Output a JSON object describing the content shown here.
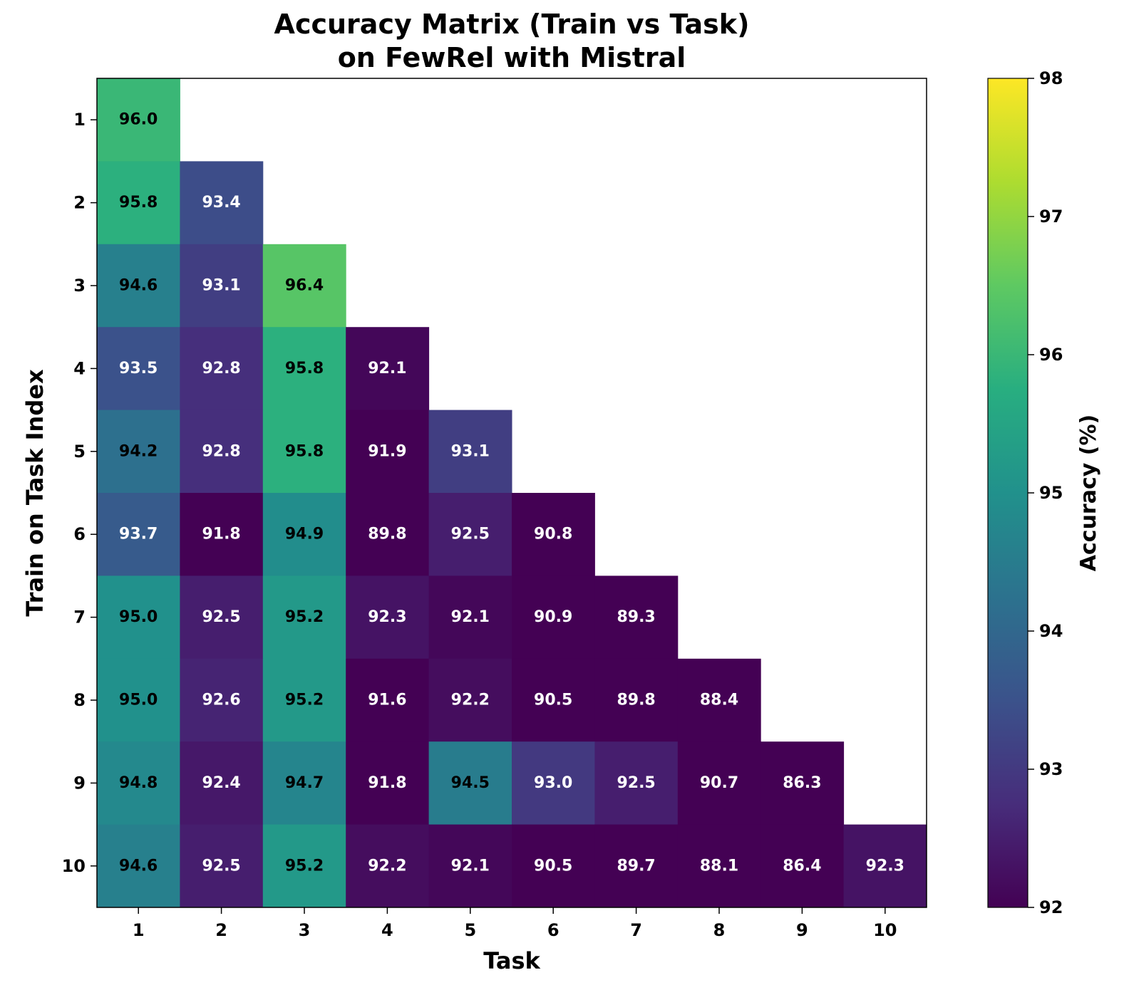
{
  "chart_data": {
    "type": "heatmap",
    "title_lines": [
      "Accuracy Matrix (Train vs Task)",
      "on FewRel with Mistral"
    ],
    "xlabel": "Task",
    "ylabel": "Train on Task Index",
    "x_categories": [
      "1",
      "2",
      "3",
      "4",
      "5",
      "6",
      "7",
      "8",
      "9",
      "10"
    ],
    "y_categories": [
      "1",
      "2",
      "3",
      "4",
      "5",
      "6",
      "7",
      "8",
      "9",
      "10"
    ],
    "values": [
      [
        96.0,
        null,
        null,
        null,
        null,
        null,
        null,
        null,
        null,
        null
      ],
      [
        95.8,
        93.4,
        null,
        null,
        null,
        null,
        null,
        null,
        null,
        null
      ],
      [
        94.6,
        93.1,
        96.4,
        null,
        null,
        null,
        null,
        null,
        null,
        null
      ],
      [
        93.5,
        92.8,
        95.8,
        92.1,
        null,
        null,
        null,
        null,
        null,
        null
      ],
      [
        94.2,
        92.8,
        95.8,
        91.9,
        93.1,
        null,
        null,
        null,
        null,
        null
      ],
      [
        93.7,
        91.8,
        94.9,
        89.8,
        92.5,
        90.8,
        null,
        null,
        null,
        null
      ],
      [
        95.0,
        92.5,
        95.2,
        92.3,
        92.1,
        90.9,
        89.3,
        null,
        null,
        null
      ],
      [
        95.0,
        92.6,
        95.2,
        91.6,
        92.2,
        90.5,
        89.8,
        88.4,
        null,
        null
      ],
      [
        94.8,
        92.4,
        94.7,
        91.8,
        94.5,
        93.0,
        92.5,
        90.7,
        86.3,
        null
      ],
      [
        94.6,
        92.5,
        95.2,
        92.2,
        92.1,
        90.5,
        89.7,
        88.1,
        86.4,
        92.3
      ]
    ],
    "colorbar": {
      "label": "Accuracy (%)",
      "vmin": 92,
      "vmax": 98,
      "ticks": [
        "92",
        "93",
        "94",
        "95",
        "96",
        "97",
        "98"
      ],
      "colormap": "viridis"
    },
    "grid": false
  }
}
